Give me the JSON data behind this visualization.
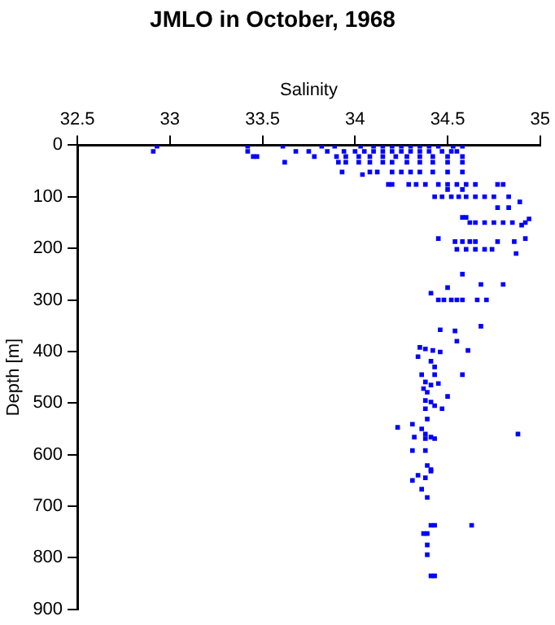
{
  "chart_data": {
    "type": "scatter",
    "title": "JMLO in October, 1968",
    "xlabel": "Salinity",
    "ylabel": "Depth [m]",
    "xlim": [
      32.5,
      35
    ],
    "xticks": [
      32.5,
      33,
      33.5,
      34,
      34.5,
      35
    ],
    "ylim": [
      900,
      0
    ],
    "yticks": [
      0,
      100,
      200,
      300,
      400,
      500,
      600,
      700,
      800,
      900
    ],
    "marker": "square",
    "grid": false,
    "series": [
      {
        "color": "#0000ff",
        "x": [
          32.93,
          32.91,
          33.42,
          33.42,
          33.45,
          33.47,
          33.61,
          33.62,
          33.68,
          33.75,
          33.78,
          33.82,
          33.85,
          33.89,
          33.9,
          33.91,
          33.93,
          33.94,
          33.95,
          34.03,
          34.1,
          34.15,
          34.2,
          34.25,
          34.3,
          34.35,
          34.4,
          34.45,
          34.53,
          34.58,
          34.0,
          34.05,
          34.1,
          34.15,
          34.2,
          34.25,
          34.3,
          34.35,
          34.4,
          34.47,
          34.52,
          34.55,
          34.02,
          34.08,
          34.15,
          34.22,
          34.28,
          34.35,
          34.42,
          34.5,
          34.58,
          33.95,
          34.02,
          34.08,
          34.15,
          34.2,
          34.28,
          34.35,
          34.42,
          34.5,
          34.58,
          34.08,
          34.12,
          34.2,
          34.25,
          34.3,
          34.35,
          34.42,
          34.5,
          34.58,
          34.04,
          34.18,
          34.2,
          34.29,
          34.33,
          34.38,
          34.45,
          34.5,
          34.55,
          34.6,
          34.65,
          34.77,
          34.8,
          34.5,
          34.58,
          34.43,
          34.47,
          34.52,
          34.56,
          34.6,
          34.65,
          34.7,
          34.75,
          34.83,
          34.77,
          34.83,
          34.89,
          34.58,
          34.6,
          34.62,
          34.65,
          34.7,
          34.75,
          34.8,
          34.85,
          34.92,
          34.94,
          34.9,
          34.45,
          34.54,
          34.58,
          34.62,
          34.65,
          34.77,
          34.86,
          34.92,
          34.55,
          34.6,
          34.65,
          34.7,
          34.74,
          34.87,
          34.58,
          34.5,
          34.68,
          34.8,
          34.41,
          34.45,
          34.48,
          34.52,
          34.55,
          34.58,
          34.66,
          34.71,
          34.68,
          34.46,
          34.54,
          34.55,
          34.35,
          34.38,
          34.42,
          34.46,
          34.34,
          34.61,
          34.41,
          34.43,
          34.36,
          34.43,
          34.58,
          34.38,
          34.41,
          34.45,
          34.37,
          34.39,
          34.5,
          34.38,
          34.41,
          34.43,
          34.47,
          34.38,
          34.39,
          34.31,
          34.23,
          34.36,
          34.38,
          34.88,
          34.41,
          34.32,
          34.43,
          34.38,
          34.31,
          34.38,
          34.39,
          34.41,
          34.31,
          34.34,
          34.38,
          34.41,
          34.36,
          34.39,
          34.41,
          34.43,
          34.63,
          34.37,
          34.39,
          34.39,
          34.39,
          34.41,
          34.43
        ],
        "values": [
          2,
          12,
          2,
          12,
          22,
          22,
          2,
          33,
          12,
          12,
          22,
          2,
          12,
          2,
          22,
          33,
          52,
          12,
          22,
          2,
          2,
          2,
          2,
          2,
          2,
          2,
          2,
          2,
          2,
          2,
          12,
          12,
          12,
          12,
          12,
          12,
          12,
          12,
          12,
          12,
          12,
          12,
          22,
          22,
          22,
          22,
          22,
          22,
          22,
          22,
          22,
          33,
          33,
          33,
          33,
          33,
          33,
          33,
          33,
          33,
          33,
          52,
          52,
          52,
          52,
          52,
          52,
          52,
          52,
          52,
          57,
          76,
          76,
          76,
          76,
          76,
          76,
          76,
          76,
          76,
          76,
          76,
          76,
          86,
          86,
          100,
          100,
          100,
          100,
          100,
          100,
          100,
          100,
          100,
          121,
          121,
          110,
          140,
          140,
          150,
          150,
          150,
          150,
          150,
          150,
          150,
          143,
          155,
          181,
          187,
          187,
          187,
          187,
          187,
          187,
          181,
          202,
          202,
          202,
          202,
          202,
          210,
          250,
          276,
          270,
          270,
          287,
          300,
          300,
          300,
          300,
          300,
          300,
          300,
          351,
          358,
          360,
          380,
          392,
          395,
          398,
          401,
          410,
          398,
          419,
          430,
          445,
          445,
          445,
          459,
          465,
          462,
          472,
          479,
          487,
          495,
          498,
          505,
          511,
          511,
          531,
          541,
          547,
          550,
          560,
          560,
          566,
          566,
          569,
          569,
          592,
          592,
          621,
          629,
          650,
          640,
          645,
          632,
          667,
          683,
          737,
          737,
          737,
          753,
          753,
          775,
          794,
          835,
          835
        ]
      }
    ]
  }
}
